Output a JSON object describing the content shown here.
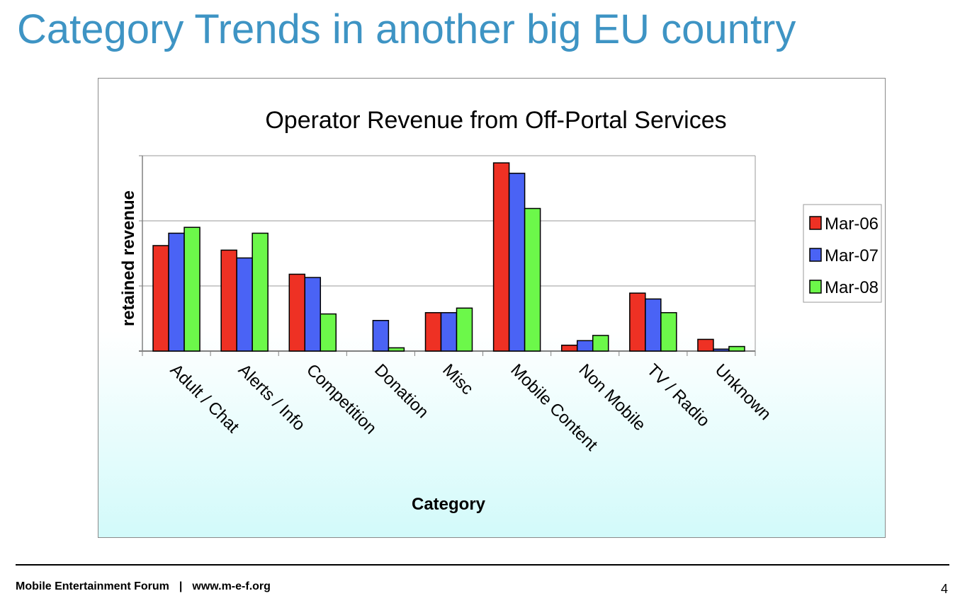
{
  "slide": {
    "title": "Category Trends in another big EU country",
    "footer": {
      "org": "Mobile Entertainment Forum",
      "separator": "|",
      "url": "www.m-e-f.org"
    },
    "page_number": "4"
  },
  "colors": {
    "Mar-06": "#ee3124",
    "Mar-07": "#4a63f5",
    "Mar-08": "#6cf84a"
  },
  "chart_data": {
    "type": "bar",
    "title": "Operator Revenue from Off-Portal Services",
    "xlabel": "Category",
    "ylabel": "retained revenue",
    "categories": [
      "Adult / Chat",
      "Alerts / Info",
      "Competition",
      "Donation",
      "Misc",
      "Mobile Content",
      "Non Mobile",
      "TV / Radio",
      "Unknown"
    ],
    "series": [
      {
        "name": "Mar-06",
        "values": [
          16.2,
          15.5,
          11.8,
          0,
          5.9,
          28.9,
          0.9,
          8.9,
          1.8
        ]
      },
      {
        "name": "Mar-07",
        "values": [
          18.1,
          14.3,
          11.3,
          4.7,
          5.9,
          27.3,
          1.6,
          8.0,
          0.3
        ]
      },
      {
        "name": "Mar-08",
        "values": [
          19.0,
          18.1,
          5.7,
          0.5,
          6.6,
          21.9,
          2.4,
          5.9,
          0.7
        ]
      }
    ],
    "ylim": [
      0,
      30
    ],
    "y_gridlines": [
      10,
      20,
      30
    ],
    "y_tick_labels": "none",
    "legend_position": "right",
    "grid": true
  }
}
